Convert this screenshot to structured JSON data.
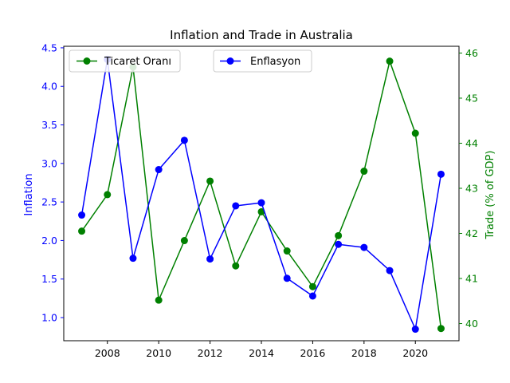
{
  "chart_data": {
    "type": "line",
    "title": "Inflation and Trade in Australia",
    "xlabel": "",
    "y_left_label": "Inflation",
    "y_right_label": "Trade (% of GDP)",
    "x": [
      2007,
      2008,
      2009,
      2010,
      2011,
      2012,
      2013,
      2014,
      2015,
      2016,
      2017,
      2018,
      2019,
      2020,
      2021
    ],
    "x_ticks": [
      2008,
      2010,
      2012,
      2014,
      2016,
      2018,
      2020
    ],
    "xlim": [
      2006.3,
      2021.7
    ],
    "y_left_lim": [
      0.7,
      4.52
    ],
    "y_left_ticks": [
      1.0,
      1.5,
      2.0,
      2.5,
      3.0,
      3.5,
      4.0,
      4.5
    ],
    "y_right_lim": [
      39.62,
      46.15
    ],
    "y_right_ticks": [
      40,
      41,
      42,
      43,
      44,
      45,
      46
    ],
    "grid": false,
    "series": [
      {
        "name": "Enflasyon",
        "axis": "left",
        "color": "#0000ff",
        "values": [
          2.33,
          4.35,
          1.77,
          2.92,
          3.3,
          1.76,
          2.45,
          2.49,
          1.51,
          1.28,
          1.95,
          1.91,
          1.61,
          0.85,
          2.86
        ]
      },
      {
        "name": "Ticaret Oranı",
        "axis": "right",
        "color": "#008000",
        "values": [
          42.05,
          42.86,
          45.69,
          40.52,
          41.84,
          43.16,
          41.28,
          42.48,
          41.61,
          40.82,
          41.95,
          43.38,
          45.82,
          44.22,
          39.89
        ]
      }
    ],
    "legend": [
      {
        "name": "Ticaret Oranı",
        "placement": "upper-left"
      },
      {
        "name": "Enflasyon",
        "placement": "upper-center"
      }
    ],
    "colors": {
      "left_axis": "#0000ff",
      "right_axis": "#008000",
      "frame": "#000000"
    }
  }
}
